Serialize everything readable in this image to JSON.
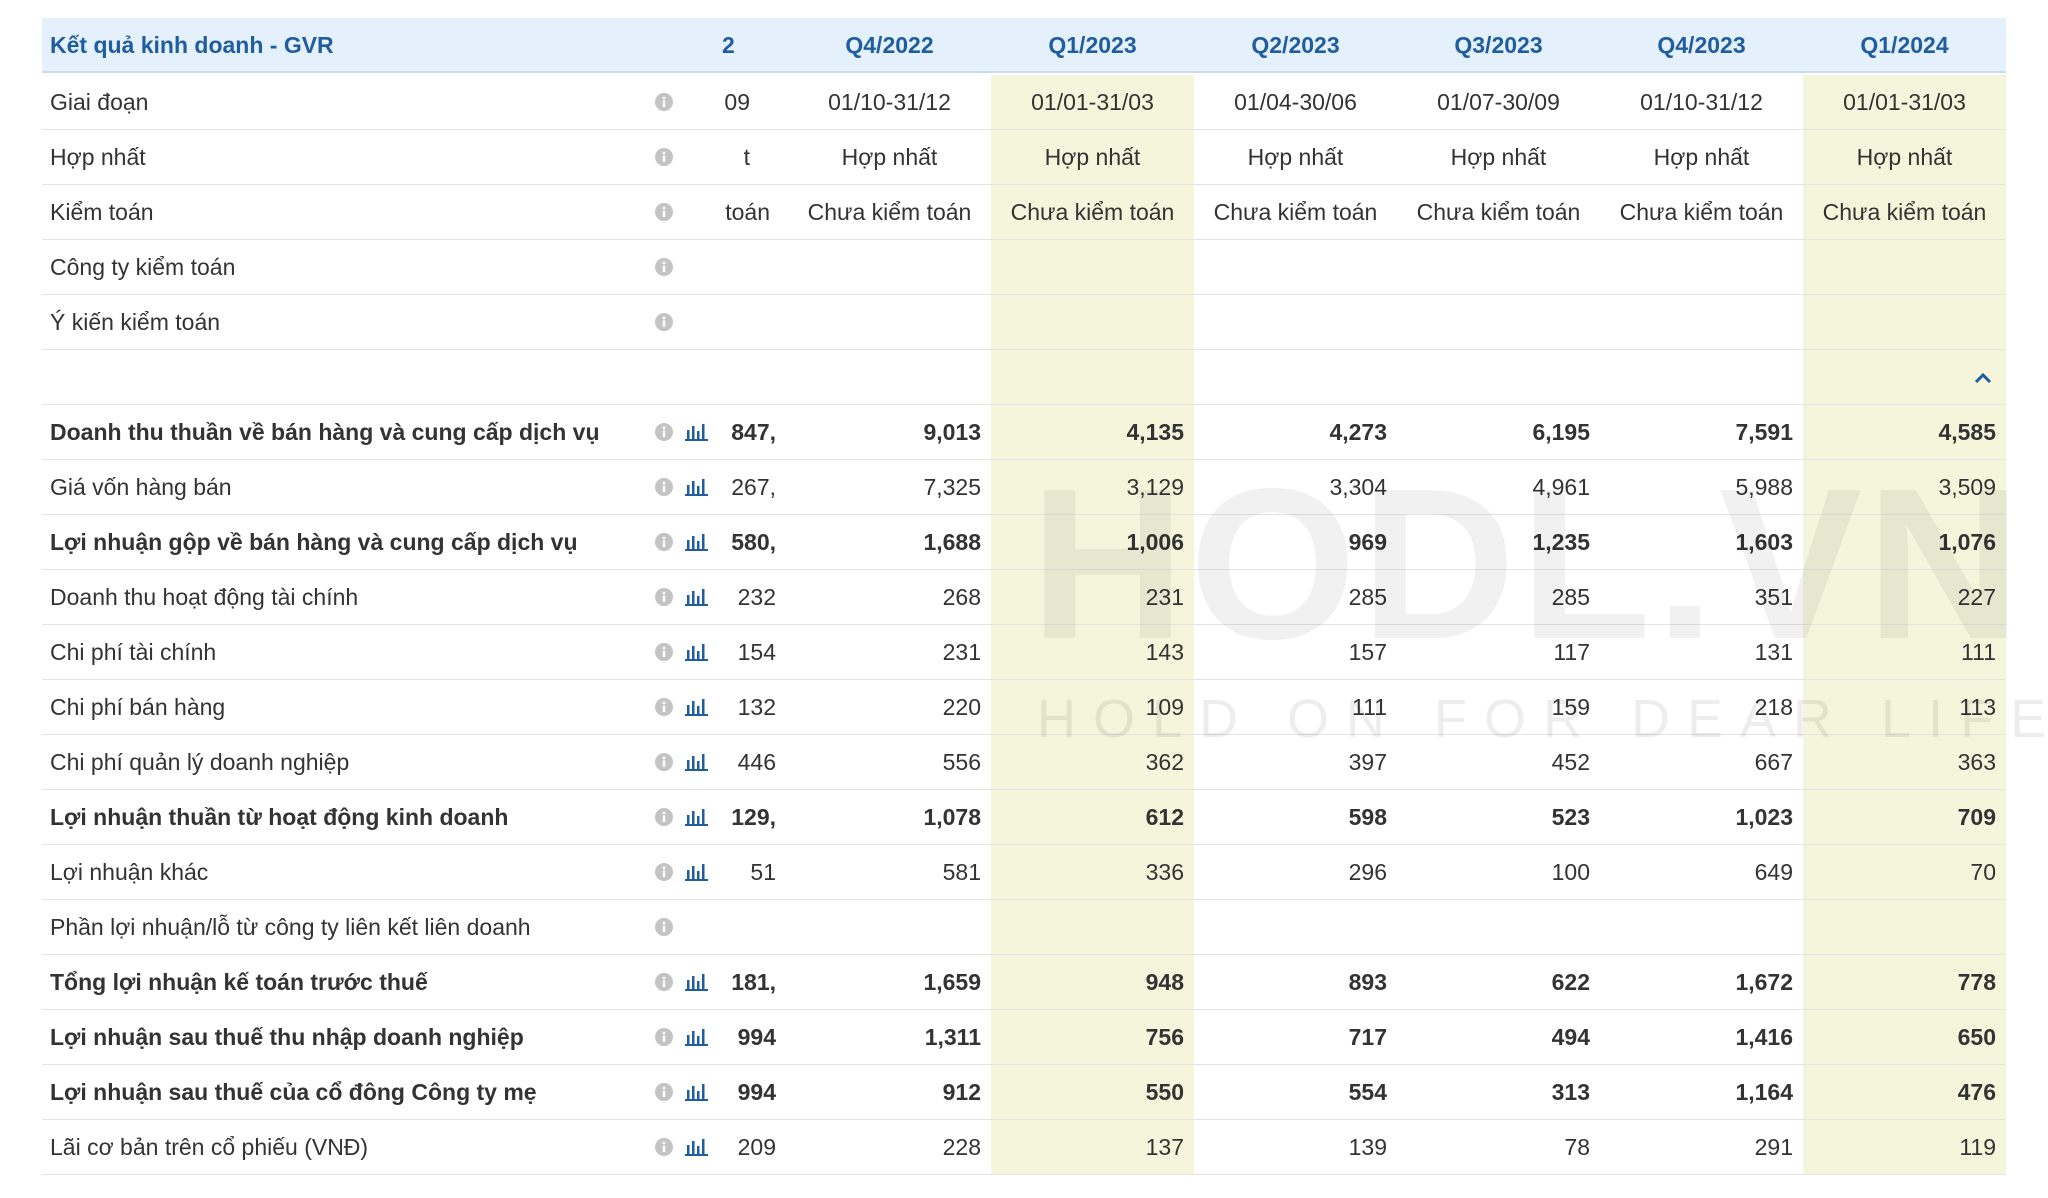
{
  "header": {
    "title": "Kết quả kinh doanh - GVR",
    "partial": "2",
    "columns": [
      "Q4/2022",
      "Q1/2023",
      "Q2/2023",
      "Q3/2023",
      "Q4/2023",
      "Q1/2024"
    ]
  },
  "watermark": {
    "logo": "HODL.VN",
    "slogan": "HOLD ON FOR DEAR LIFE"
  },
  "rows": [
    {
      "label": "Giai đoạn",
      "partial": "09",
      "values": [
        "01/10-31/12",
        "01/01-31/03",
        "01/04-30/06",
        "01/07-30/09",
        "01/10-31/12",
        "01/01-31/03"
      ]
    },
    {
      "label": "Hợp nhất",
      "partial": "t",
      "values": [
        "Hợp nhất",
        "Hợp nhất",
        "Hợp nhất",
        "Hợp nhất",
        "Hợp nhất",
        "Hợp nhất"
      ]
    },
    {
      "label": "Kiểm toán",
      "partial": "toán",
      "values": [
        "Chưa kiểm toán",
        "Chưa kiểm toán",
        "Chưa kiểm toán",
        "Chưa kiểm toán",
        "Chưa kiểm toán",
        "Chưa kiểm toán"
      ]
    },
    {
      "label": "Công ty kiểm toán"
    },
    {
      "label": "Ý kiến kiểm toán"
    },
    {
      "label": "Doanh thu thuần về bán hàng và cung cấp dịch vụ",
      "bold": true,
      "chart": true,
      "partial": ",847",
      "values": [
        "9,013",
        "4,135",
        "4,273",
        "6,195",
        "7,591",
        "4,585"
      ]
    },
    {
      "label": "Giá vốn hàng bán",
      "chart": true,
      "partial": ",267",
      "values": [
        "7,325",
        "3,129",
        "3,304",
        "4,961",
        "5,988",
        "3,509"
      ]
    },
    {
      "label": "Lợi nhuận gộp về bán hàng và cung cấp dịch vụ",
      "bold": true,
      "chart": true,
      "partial": ",580",
      "values": [
        "1,688",
        "1,006",
        "969",
        "1,235",
        "1,603",
        "1,076"
      ]
    },
    {
      "label": "Doanh thu hoạt động tài chính",
      "chart": true,
      "partial": "232",
      "values": [
        "268",
        "231",
        "285",
        "285",
        "351",
        "227"
      ]
    },
    {
      "label": "Chi phí tài chính",
      "chart": true,
      "partial": "154",
      "values": [
        "231",
        "143",
        "157",
        "117",
        "131",
        "111"
      ]
    },
    {
      "label": "Chi phí bán hàng",
      "chart": true,
      "partial": "132",
      "values": [
        "220",
        "109",
        "111",
        "159",
        "218",
        "113"
      ]
    },
    {
      "label": "Chi phí quản lý doanh nghiệp",
      "chart": true,
      "partial": "446",
      "values": [
        "556",
        "362",
        "397",
        "452",
        "667",
        "363"
      ]
    },
    {
      "label": "Lợi nhuận thuần từ hoạt động kinh doanh",
      "bold": true,
      "chart": true,
      "partial": ",129",
      "values": [
        "1,078",
        "612",
        "598",
        "523",
        "1,023",
        "709"
      ]
    },
    {
      "label": "Lợi nhuận khác",
      "chart": true,
      "partial": "51",
      "values": [
        "581",
        "336",
        "296",
        "100",
        "649",
        "70"
      ]
    },
    {
      "label": "Phần lợi nhuận/lỗ từ công ty liên kết liên doanh"
    },
    {
      "label": "Tổng lợi nhuận kế toán trước thuế",
      "bold": true,
      "chart": true,
      "partial": ",181",
      "values": [
        "1,659",
        "948",
        "893",
        "622",
        "1,672",
        "778"
      ]
    },
    {
      "label": "Lợi nhuận sau thuế thu nhập doanh nghiệp",
      "bold": true,
      "chart": true,
      "partial": "994",
      "values": [
        "1,311",
        "756",
        "717",
        "494",
        "1,416",
        "650"
      ]
    },
    {
      "label": "Lợi nhuận sau thuế của cổ đông Công ty mẹ",
      "bold": true,
      "chart": true,
      "partial": "994",
      "values": [
        "912",
        "550",
        "554",
        "313",
        "1,164",
        "476"
      ]
    },
    {
      "label": "Lãi cơ bản trên cổ phiếu (VNĐ)",
      "chart": true,
      "partial": "209",
      "values": [
        "228",
        "137",
        "139",
        "78",
        "291",
        "119"
      ]
    }
  ]
}
